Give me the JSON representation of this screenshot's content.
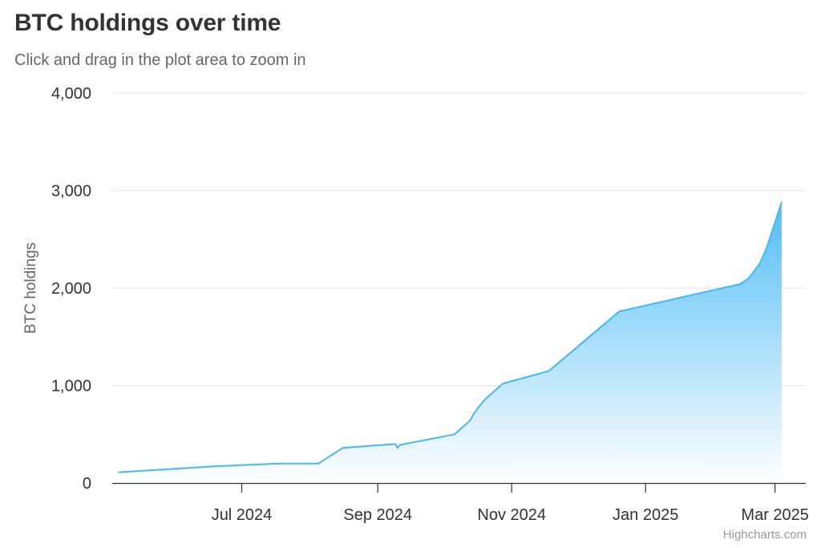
{
  "header": {
    "title": "BTC holdings over time",
    "subtitle": "Click and drag in the plot area to zoom in"
  },
  "credits": "Highcharts.com",
  "colors": {
    "series": "#4cb6ea",
    "area_top": "#53bdf4",
    "area_bottom": "#ffffff",
    "grid": "#e6e6e6",
    "axis": "#333333"
  },
  "chart_data": {
    "type": "area",
    "title": "BTC holdings over time",
    "subtitle": "Click and drag in the plot area to zoom in",
    "ylabel": "BTC holdings",
    "xlabel": "",
    "ylim": [
      0,
      4000
    ],
    "yticks": [
      0,
      1000,
      2000,
      3000,
      4000
    ],
    "ytick_labels": [
      "0",
      "1,000",
      "2,000",
      "3,000",
      "4,000"
    ],
    "xlim": [
      "2024-05-03",
      "2025-03-15"
    ],
    "xticks": [
      "2024-07-01",
      "2024-09-01",
      "2024-11-01",
      "2025-01-01",
      "2025-03-01"
    ],
    "xtick_labels": [
      "Jul 2024",
      "Sep 2024",
      "Nov 2024",
      "Jan 2025",
      "Mar 2025"
    ],
    "grid": true,
    "legend": false,
    "series": [
      {
        "x": [
          "2024-05-06",
          "2024-06-18",
          "2024-07-18",
          "2024-08-05",
          "2024-08-16",
          "2024-09-09",
          "2024-09-10",
          "2024-09-11",
          "2024-10-06",
          "2024-10-13",
          "2024-10-15",
          "2024-10-17",
          "2024-10-20",
          "2024-10-28",
          "2024-11-18",
          "2024-12-20",
          "2025-02-13",
          "2025-02-17",
          "2025-02-22",
          "2025-02-25",
          "2025-03-04"
        ],
        "y": [
          110,
          170,
          200,
          200,
          360,
          400,
          360,
          390,
          500,
          640,
          720,
          780,
          860,
          1020,
          1150,
          1760,
          2040,
          2100,
          2250,
          2400,
          2880
        ]
      }
    ]
  }
}
